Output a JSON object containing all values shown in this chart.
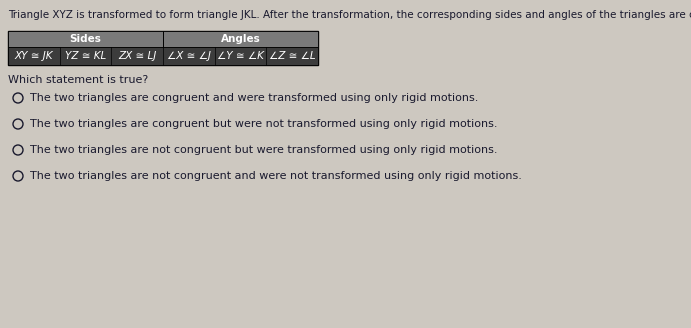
{
  "title": "Triangle XYZ is transformed to form triangle JKL. After the transformation, the corresponding sides and angles of the triangles are congruent, as shown.",
  "table_header_sides": "Sides",
  "table_header_angles": "Angles",
  "table_cells": [
    "XY ≅ JK",
    "YZ ≅ KL",
    "ZX ≅ LJ",
    "∠X ≅ ∠J",
    "∠Y ≅ ∠K",
    "∠Z ≅ ∠L"
  ],
  "question": "Which statement is true?",
  "options": [
    "The two triangles are congruent and were transformed using only rigid motions.",
    "The two triangles are congruent but were not transformed using only rigid motions.",
    "The two triangles are not congruent but were transformed using only rigid motions.",
    "The two triangles are not congruent and were not transformed using only rigid motions."
  ],
  "bg_color": "#cdc8c0",
  "table_header_bg": "#7a7a7a",
  "table_cell_bg": "#3c3c3c",
  "text_color": "#1a1a2e",
  "cell_text_color": "#ffffff",
  "title_fontsize": 7.5,
  "question_fontsize": 8,
  "option_fontsize": 8,
  "cell_fontsize": 7.5,
  "header_fontsize": 7.5
}
